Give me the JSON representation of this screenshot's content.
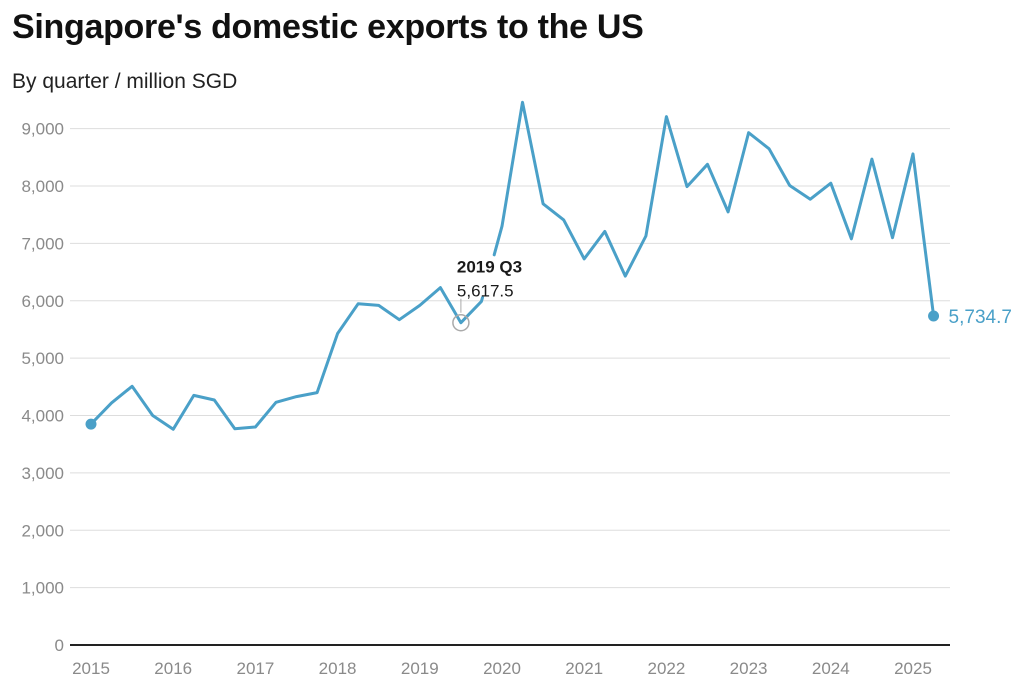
{
  "title": "Singapore's domestic exports to the US",
  "subtitle": "By quarter / million SGD",
  "colors": {
    "line": "#4aa0c8",
    "grid": "#dddddd",
    "axis": "#222222",
    "tick": "#8a8a8a",
    "hover_ring": "#aaaaaa"
  },
  "chart_data": {
    "type": "line",
    "title": "Singapore's domestic exports to the US",
    "subtitle": "By quarter / million SGD",
    "xlabel": "",
    "ylabel": "",
    "ylim": [
      0,
      9500
    ],
    "y_ticks": [
      0,
      1000,
      2000,
      3000,
      4000,
      5000,
      6000,
      7000,
      8000,
      9000
    ],
    "y_tick_labels": [
      "0",
      "1,000",
      "2,000",
      "3,000",
      "4,000",
      "5,000",
      "6,000",
      "7,000",
      "8,000",
      "9,000"
    ],
    "x_tick_labels": [
      "2015",
      "2016",
      "2017",
      "2018",
      "2019",
      "2020",
      "2021",
      "2022",
      "2023",
      "2024",
      "2025"
    ],
    "grid": true,
    "legend": "none",
    "categories": [
      "2015 Q1",
      "2015 Q2",
      "2015 Q3",
      "2015 Q4",
      "2016 Q1",
      "2016 Q2",
      "2016 Q3",
      "2016 Q4",
      "2017 Q1",
      "2017 Q2",
      "2017 Q3",
      "2017 Q4",
      "2018 Q1",
      "2018 Q2",
      "2018 Q3",
      "2018 Q4",
      "2019 Q1",
      "2019 Q2",
      "2019 Q3",
      "2019 Q4",
      "2020 Q1",
      "2020 Q2",
      "2020 Q3",
      "2020 Q4",
      "2021 Q1",
      "2021 Q2",
      "2021 Q3",
      "2021 Q4",
      "2022 Q1",
      "2022 Q2",
      "2022 Q3",
      "2022 Q4",
      "2023 Q1",
      "2023 Q2",
      "2023 Q3",
      "2023 Q4",
      "2024 Q1",
      "2024 Q2",
      "2024 Q3",
      "2024 Q4",
      "2025 Q1",
      "2025 Q2"
    ],
    "values": [
      3850,
      4220,
      4510,
      4000,
      3760,
      4350,
      4270,
      3770,
      3800,
      4230,
      4330,
      4400,
      5430,
      5950,
      5920,
      5670,
      5920,
      6230,
      5617.5,
      5990,
      7300,
      9460,
      7690,
      7410,
      6730,
      7210,
      6430,
      7130,
      9210,
      7990,
      8380,
      7550,
      8930,
      8650,
      8010,
      7770,
      8050,
      7080,
      8470,
      7100,
      8560,
      5734.7
    ],
    "hover": {
      "category": "2019 Q3",
      "value_label": "5,617.5"
    },
    "end_label": "5,734.7"
  }
}
